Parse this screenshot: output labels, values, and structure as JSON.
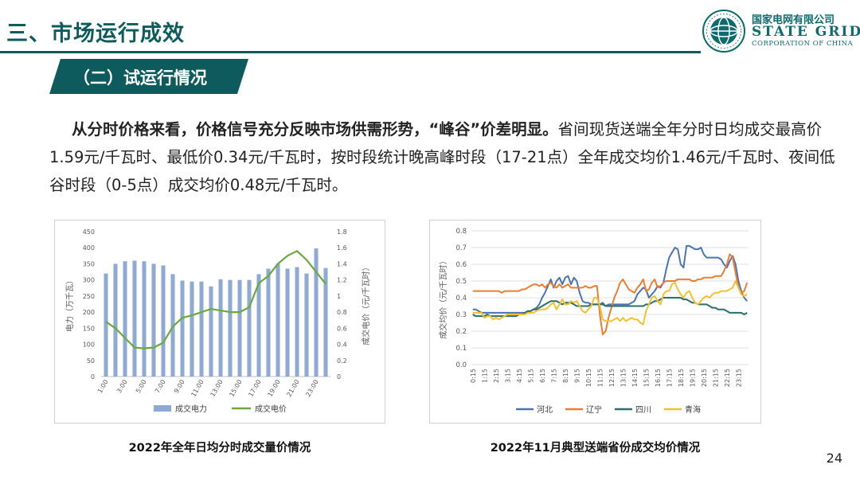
{
  "header": {
    "section_title": "三、市场运行成效",
    "subsection_title": "（二）试运行情况"
  },
  "logo": {
    "cn": "国家电网有限公司",
    "en": "STATE GRID",
    "sub": "CORPORATION OF CHINA"
  },
  "paragraph": {
    "bold": "从分时价格来看，价格信号充分反映市场供需形势，“峰谷”价差明显。",
    "rest": "省间现货送端全年分时日均成交最高价1.59元/千瓦时、最低价0.34元/千瓦时，按时段统计晚高峰时段（17-21点）全年成交均价1.46元/千瓦时、夜间低谷时段（0-5点）成交均价0.48元/千瓦时。"
  },
  "captions": {
    "left": "2022年全年日均分时成交量价情况",
    "right": "2022年11月典型送端省份成交均价情况"
  },
  "page_number": "24",
  "colors": {
    "teal": "#0d5b5d",
    "bar": "#8eaad4",
    "price_line": "#6aaa3c",
    "hebei": "#4a74b4",
    "liaoning": "#ed7d31",
    "sichuan": "#2b6e6a",
    "qinghai": "#f2c12e"
  },
  "chart_data": [
    {
      "type": "bar",
      "categories": [
        "1:00",
        "2:00",
        "3:00",
        "4:00",
        "5:00",
        "6:00",
        "7:00",
        "8:00",
        "9:00",
        "10:00",
        "11:00",
        "12:00",
        "13:00",
        "14:00",
        "15:00",
        "16:00",
        "17:00",
        "18:00",
        "19:00",
        "20:00",
        "21:00",
        "22:00",
        "23:00",
        "24:00"
      ],
      "x_tick_labels": [
        "1:00",
        "3:00",
        "5:00",
        "7:00",
        "9:00",
        "11:00",
        "13:00",
        "15:00",
        "17:00",
        "19:00",
        "21:00",
        "23:00"
      ],
      "ylabel": "电力（万千瓦）",
      "y2label": "成交电价（元/千瓦时）",
      "ylim": [
        0,
        450
      ],
      "y2lim": [
        0,
        1.8
      ],
      "y_ticks": [
        "0",
        "50",
        "100",
        "150",
        "200",
        "250",
        "300",
        "350",
        "400",
        "450"
      ],
      "y2_ticks": [
        "0",
        "0.2",
        "0.4",
        "0.6",
        "0.8",
        "1",
        "1.2",
        "1.4",
        "1.6",
        "1.8"
      ],
      "series": [
        {
          "name": "成交电力",
          "kind": "bar",
          "axis": "left",
          "values": [
            320,
            350,
            358,
            360,
            358,
            350,
            345,
            318,
            298,
            295,
            295,
            280,
            302,
            300,
            300,
            300,
            318,
            335,
            350,
            335,
            340,
            320,
            398,
            337
          ]
        },
        {
          "name": "成交电价",
          "kind": "line",
          "axis": "right",
          "values": [
            0.68,
            0.6,
            0.48,
            0.36,
            0.35,
            0.36,
            0.42,
            0.62,
            0.73,
            0.76,
            0.8,
            0.84,
            0.82,
            0.8,
            0.8,
            0.86,
            1.16,
            1.25,
            1.4,
            1.5,
            1.56,
            1.45,
            1.3,
            1.15
          ]
        }
      ],
      "legend": "bottom",
      "grid": false
    },
    {
      "type": "line",
      "ylabel": "成交均价（元/千瓦时）",
      "ylim": [
        0,
        0.8
      ],
      "y_ticks": [
        "0.0",
        "0.1",
        "0.2",
        "0.3",
        "0.4",
        "0.5",
        "0.6",
        "0.7",
        "0.8"
      ],
      "x_tick_labels": [
        "0:15",
        "1:15",
        "2:15",
        "3:15",
        "4:15",
        "5:15",
        "6:15",
        "7:15",
        "8:15",
        "9:15",
        "10:15",
        "11:15",
        "12:15",
        "13:15",
        "14:15",
        "15:15",
        "16:15",
        "17:15",
        "18:15",
        "19:15",
        "20:15",
        "21:15",
        "22:15",
        "23:15"
      ],
      "x_count": 96,
      "grid": true,
      "legend": "bottom",
      "series": [
        {
          "name": "河北",
          "values": [
            0.33,
            0.33,
            0.32,
            0.31,
            0.31,
            0.31,
            0.31,
            0.31,
            0.31,
            0.31,
            0.31,
            0.31,
            0.31,
            0.31,
            0.31,
            0.31,
            0.31,
            0.31,
            0.31,
            0.31,
            0.32,
            0.33,
            0.34,
            0.36,
            0.4,
            0.43,
            0.47,
            0.51,
            0.46,
            0.5,
            0.52,
            0.48,
            0.52,
            0.53,
            0.48,
            0.52,
            0.5,
            0.43,
            0.38,
            0.37,
            0.37,
            0.36,
            0.36,
            0.36,
            0.36,
            0.37,
            0.35,
            0.36,
            0.36,
            0.36,
            0.36,
            0.36,
            0.36,
            0.36,
            0.36,
            0.37,
            0.38,
            0.42,
            0.44,
            0.46,
            0.45,
            0.4,
            0.42,
            0.44,
            0.47,
            0.46,
            0.49,
            0.57,
            0.64,
            0.67,
            0.7,
            0.69,
            0.6,
            0.58,
            0.71,
            0.71,
            0.7,
            0.69,
            0.69,
            0.7,
            0.66,
            0.64,
            0.64,
            0.64,
            0.64,
            0.64,
            0.63,
            0.6,
            0.58,
            0.62,
            0.65,
            0.6,
            0.5,
            0.44,
            0.4,
            0.38
          ]
        },
        {
          "name": "辽宁",
          "values": [
            0.44,
            0.44,
            0.44,
            0.44,
            0.44,
            0.44,
            0.44,
            0.44,
            0.44,
            0.44,
            0.43,
            0.44,
            0.44,
            0.44,
            0.44,
            0.44,
            0.44,
            0.45,
            0.45,
            0.46,
            0.47,
            0.48,
            0.48,
            0.47,
            0.48,
            0.46,
            0.48,
            0.49,
            0.47,
            0.46,
            0.48,
            0.46,
            0.47,
            0.48,
            0.46,
            0.46,
            0.46,
            0.46,
            0.46,
            0.47,
            0.46,
            0.46,
            0.47,
            0.47,
            0.3,
            0.18,
            0.2,
            0.28,
            0.34,
            0.4,
            0.44,
            0.49,
            0.51,
            0.48,
            0.45,
            0.44,
            0.43,
            0.46,
            0.48,
            0.51,
            0.44,
            0.45,
            0.49,
            0.51,
            0.46,
            0.47,
            0.49,
            0.5,
            0.5,
            0.5,
            0.5,
            0.51,
            0.51,
            0.51,
            0.51,
            0.51,
            0.5,
            0.5,
            0.51,
            0.51,
            0.52,
            0.52,
            0.52,
            0.52,
            0.53,
            0.53,
            0.53,
            0.56,
            0.6,
            0.66,
            0.64,
            0.55,
            0.46,
            0.43,
            0.44,
            0.49
          ]
        },
        {
          "name": "四川",
          "values": [
            0.3,
            0.29,
            0.29,
            0.29,
            0.29,
            0.3,
            0.29,
            0.29,
            0.29,
            0.29,
            0.29,
            0.29,
            0.29,
            0.29,
            0.29,
            0.29,
            0.3,
            0.3,
            0.31,
            0.32,
            0.32,
            0.33,
            0.33,
            0.34,
            0.35,
            0.36,
            0.37,
            0.38,
            0.38,
            0.38,
            0.37,
            0.36,
            0.37,
            0.37,
            0.37,
            0.36,
            0.35,
            0.35,
            0.35,
            0.35,
            0.35,
            0.36,
            0.36,
            0.36,
            0.36,
            0.36,
            0.35,
            0.35,
            0.35,
            0.35,
            0.35,
            0.35,
            0.35,
            0.35,
            0.35,
            0.35,
            0.35,
            0.35,
            0.35,
            0.35,
            0.36,
            0.36,
            0.37,
            0.38,
            0.38,
            0.39,
            0.4,
            0.4,
            0.4,
            0.4,
            0.4,
            0.4,
            0.4,
            0.39,
            0.39,
            0.38,
            0.37,
            0.37,
            0.36,
            0.36,
            0.36,
            0.36,
            0.35,
            0.34,
            0.34,
            0.33,
            0.33,
            0.33,
            0.32,
            0.31,
            0.31,
            0.31,
            0.31,
            0.31,
            0.3,
            0.31
          ]
        },
        {
          "name": "青海",
          "values": [
            0.31,
            0.31,
            0.31,
            0.31,
            0.28,
            0.29,
            0.29,
            0.27,
            0.28,
            0.27,
            0.28,
            0.29,
            0.3,
            0.3,
            0.3,
            0.3,
            0.3,
            0.3,
            0.3,
            0.31,
            0.31,
            0.31,
            0.32,
            0.33,
            0.33,
            0.33,
            0.34,
            0.36,
            0.37,
            0.33,
            0.36,
            0.39,
            0.36,
            0.36,
            0.38,
            0.37,
            0.38,
            0.35,
            0.32,
            0.31,
            0.33,
            0.35,
            0.4,
            0.4,
            0.35,
            0.27,
            0.26,
            0.26,
            0.26,
            0.27,
            0.28,
            0.26,
            0.28,
            0.26,
            0.27,
            0.28,
            0.27,
            0.27,
            0.25,
            0.24,
            0.32,
            0.36,
            0.4,
            0.41,
            0.38,
            0.36,
            0.42,
            0.44,
            0.44,
            0.48,
            0.49,
            0.45,
            0.42,
            0.4,
            0.43,
            0.44,
            0.4,
            0.37,
            0.36,
            0.38,
            0.4,
            0.41,
            0.4,
            0.42,
            0.43,
            0.43,
            0.44,
            0.44,
            0.44,
            0.45,
            0.46,
            0.5,
            0.46,
            0.42,
            0.41,
            0.42
          ]
        }
      ]
    }
  ]
}
